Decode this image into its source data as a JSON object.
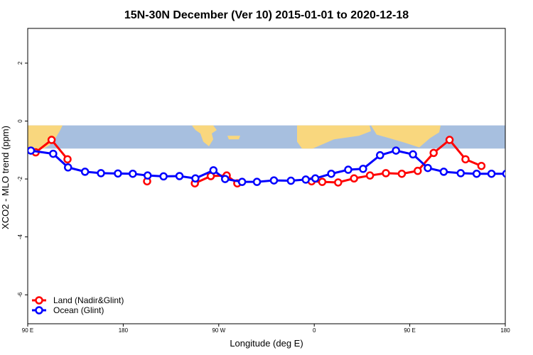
{
  "chart_data": {
    "type": "line",
    "title": "15N-30N December (Ver 10)   2015-01-01 to 2020-12-18",
    "xlabel": "Longitude (deg E)",
    "ylabel": "XCO2 - MLO trend (ppm)",
    "xlim": [
      90,
      450
    ],
    "ylim": [
      -7,
      3.2
    ],
    "x_ticks": [
      {
        "value": 90,
        "label": "90 E"
      },
      {
        "value": 180,
        "label": "180"
      },
      {
        "value": 270,
        "label": "90 W"
      },
      {
        "value": 360,
        "label": "0"
      },
      {
        "value": 450,
        "label": "90 E"
      },
      {
        "value": 540,
        "label": "180"
      }
    ],
    "x_ticks_note": "axis spans 90E (x=90) to 180 (x=540) in unwrapped longitude",
    "y_ticks": [
      {
        "value": 2,
        "label": "2"
      },
      {
        "value": 0,
        "label": "0"
      },
      {
        "value": -2,
        "label": "-2"
      },
      {
        "value": -4,
        "label": "-4"
      },
      {
        "value": -6,
        "label": "-6"
      }
    ],
    "map_band": {
      "lat_range": "15N-30N",
      "ymin": -0.95,
      "ymax": -0.15,
      "ocean_color": "#a7bfdf",
      "land_color": "#f9d77e"
    },
    "series": [
      {
        "name": "Land (Nadir&Glint)",
        "color": "#ff0000",
        "segments": [
          {
            "x": [
              97.5,
              112.5,
              127.5
            ],
            "y": [
              -1.08,
              -0.65,
              -1.32
            ]
          },
          {
            "x": [
              202.5
            ],
            "y": [
              -2.08
            ]
          },
          {
            "x": [
              247.5,
              262.5,
              277.5,
              287.5
            ],
            "y": [
              -2.15,
              -1.9,
              -1.88,
              -2.15
            ]
          },
          {
            "x": [
              357.5,
              367.5,
              382.5,
              397.5,
              412.5,
              427.5,
              442.5,
              457.5,
              472.5,
              487.5,
              502.5,
              517.5
            ],
            "y": [
              -2.08,
              -2.1,
              -2.12,
              -1.98,
              -1.88,
              -1.8,
              -1.82,
              -1.72,
              -1.1,
              -0.65,
              -1.32,
              -1.55
            ]
          }
        ]
      },
      {
        "name": "Ocean (Glint)",
        "color": "#0000ff",
        "segments": [
          {
            "x": [
              93,
              114,
              128,
              144,
              159,
              175,
              189,
              203,
              218,
              233,
              248,
              265,
              276,
              292,
              306,
              322,
              338,
              352,
              361,
              376,
              392,
              406,
              422,
              437,
              453,
              467,
              482,
              498,
              513,
              527,
              541
            ],
            "y": [
              -1.02,
              -1.13,
              -1.6,
              -1.75,
              -1.8,
              -1.81,
              -1.82,
              -1.88,
              -1.91,
              -1.9,
              -1.98,
              -1.7,
              -2.0,
              -2.1,
              -2.1,
              -2.05,
              -2.06,
              -2.02,
              -1.98,
              -1.82,
              -1.68,
              -1.65,
              -1.18,
              -1.02,
              -1.15,
              -1.62,
              -1.75,
              -1.8,
              -1.82,
              -1.82,
              -1.82
            ]
          }
        ]
      }
    ],
    "legend": {
      "position": "bottom-left",
      "entries": [
        "Land (Nadir&Glint)",
        "Ocean (Glint)"
      ]
    }
  }
}
